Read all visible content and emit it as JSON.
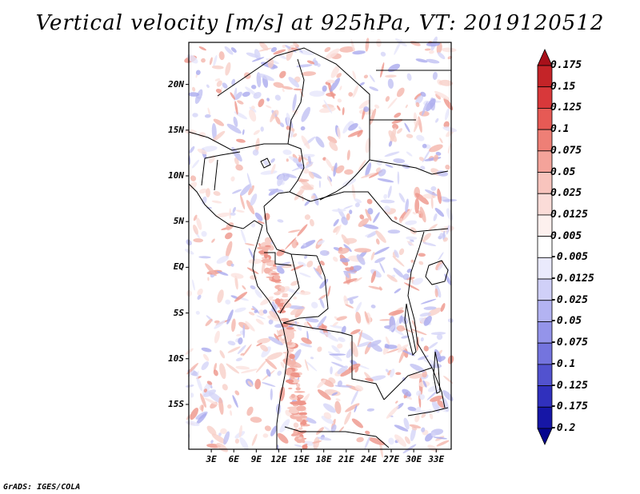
{
  "title": "Vertical velocity [m/s] at 925hPa, VT: 2019120512",
  "credit": "GrADS: IGES/COLA",
  "map": {
    "lat_labels": [
      "20N",
      "15N",
      "10N",
      "5N",
      "EQ",
      "5S",
      "10S",
      "15S"
    ],
    "lat_values": [
      20,
      15,
      10,
      5,
      0,
      -5,
      -10,
      -15
    ],
    "lon_labels": [
      "3E",
      "6E",
      "9E",
      "12E",
      "15E",
      "18E",
      "21E",
      "24E",
      "27E",
      "30E",
      "33E"
    ],
    "lon_values": [
      3,
      6,
      9,
      12,
      15,
      18,
      21,
      24,
      27,
      30,
      33
    ],
    "lat_range": [
      -19.9,
      24.6
    ],
    "lon_range": [
      0,
      35
    ]
  },
  "colorbar": {
    "labels": [
      "0.175",
      "0.15",
      "0.125",
      "0.1",
      "0.075",
      "0.05",
      "0.025",
      "0.0125",
      "0.005",
      "-0.005",
      "-0.0125",
      "-0.025",
      "-0.05",
      "-0.075",
      "-0.1",
      "-0.125",
      "-0.175",
      "-0.2"
    ],
    "colors": [
      "#a8101a",
      "#c42428",
      "#d8383a",
      "#e65a55",
      "#ee7f76",
      "#f4a39a",
      "#f8c4bd",
      "#fbdcd8",
      "#fdf0ee",
      "#ffffff",
      "#eaeafc",
      "#d0d0f8",
      "#b3b3f2",
      "#9494ea",
      "#7474de",
      "#5252cf",
      "#3030bd",
      "#1616a6",
      "#05058e"
    ]
  }
}
